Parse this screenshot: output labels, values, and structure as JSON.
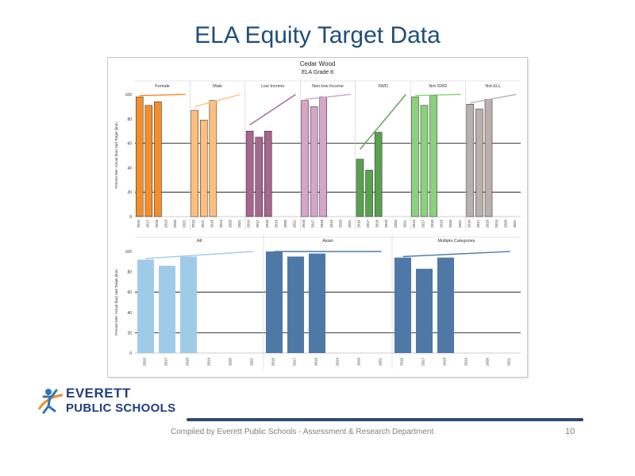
{
  "slide": {
    "title": "ELA Equity Target Data",
    "footer": "Compiled  by Everett Public Schools - Assessment & Research Department",
    "page_number": "10"
  },
  "logo": {
    "line1": "EVERETT",
    "line2": "PUBLIC SCHOOLS",
    "figure_color": "#2e75b6",
    "swoosh_color": "#f28c28"
  },
  "chart_data": {
    "type": "bar",
    "title": "Cedar Wood",
    "subtitle": "ELA Grade 8",
    "ylabel": "Percent Met: Actual (bar) and Target (line)",
    "ylim": [
      0,
      100
    ],
    "yticks": [
      0,
      20,
      40,
      60,
      80,
      100
    ],
    "reference_lines": [
      20,
      60
    ],
    "years": [
      "2016",
      "2017",
      "2018",
      "2019",
      "2020",
      "2021"
    ],
    "panels": [
      {
        "row": "top",
        "groups": [
          {
            "name": "Female",
            "color": "#f28e2b",
            "target_color": "#f28e2b",
            "actual": [
              98,
              91,
              94,
              null,
              null,
              null
            ],
            "target": [
              99,
              null,
              null,
              null,
              null,
              100
            ]
          },
          {
            "name": "Male",
            "color": "#ffbe7d",
            "target_color": "#ffbe7d",
            "actual": [
              87,
              79,
              95,
              null,
              null,
              null
            ],
            "target": [
              90,
              null,
              null,
              null,
              null,
              100
            ]
          },
          {
            "name": "Low Income",
            "color": "#a5678e",
            "target_color": "#a5678e",
            "actual": [
              70,
              65,
              70,
              null,
              null,
              null
            ],
            "target": [
              75,
              null,
              null,
              null,
              null,
              100
            ]
          },
          {
            "name": "Non-low Income",
            "color": "#d4a6c8",
            "target_color": "#d4a6c8",
            "actual": [
              95,
              90,
              98,
              null,
              null,
              null
            ],
            "target": [
              96,
              null,
              null,
              null,
              null,
              100
            ]
          },
          {
            "name": "SWD",
            "color": "#59a14f",
            "target_color": "#59a14f",
            "actual": [
              47,
              38,
              69,
              null,
              null,
              null
            ],
            "target": [
              55,
              null,
              null,
              null,
              null,
              100
            ]
          },
          {
            "name": "Not SWD",
            "color": "#8cd17d",
            "target_color": "#8cd17d",
            "actual": [
              98,
              91,
              99,
              null,
              null,
              null
            ],
            "target": [
              99,
              null,
              null,
              null,
              null,
              100
            ]
          },
          {
            "name": "Not ELL",
            "color": "#bab0ac",
            "target_color": "#bab0ac",
            "actual": [
              92,
              88,
              96,
              null,
              null,
              null
            ],
            "target": [
              93,
              null,
              null,
              null,
              null,
              100
            ]
          }
        ]
      },
      {
        "row": "bottom",
        "groups": [
          {
            "name": "All",
            "color": "#a0cbe8",
            "target_color": "#a0cbe8",
            "actual": [
              92,
              86,
              95,
              null,
              null,
              null
            ],
            "target": [
              93,
              null,
              null,
              null,
              null,
              100
            ]
          },
          {
            "name": "Asian",
            "color": "#4e79a7",
            "target_color": "#4e79a7",
            "actual": [
              100,
              95,
              98,
              null,
              null,
              null
            ],
            "target": [
              100,
              null,
              null,
              null,
              null,
              100
            ]
          },
          {
            "name": "Multiple Categories",
            "color": "#4e79a7",
            "target_color": "#4e79a7",
            "actual": [
              94,
              83,
              94,
              null,
              null,
              null
            ],
            "target": [
              95,
              null,
              null,
              null,
              null,
              100
            ]
          }
        ]
      }
    ]
  }
}
